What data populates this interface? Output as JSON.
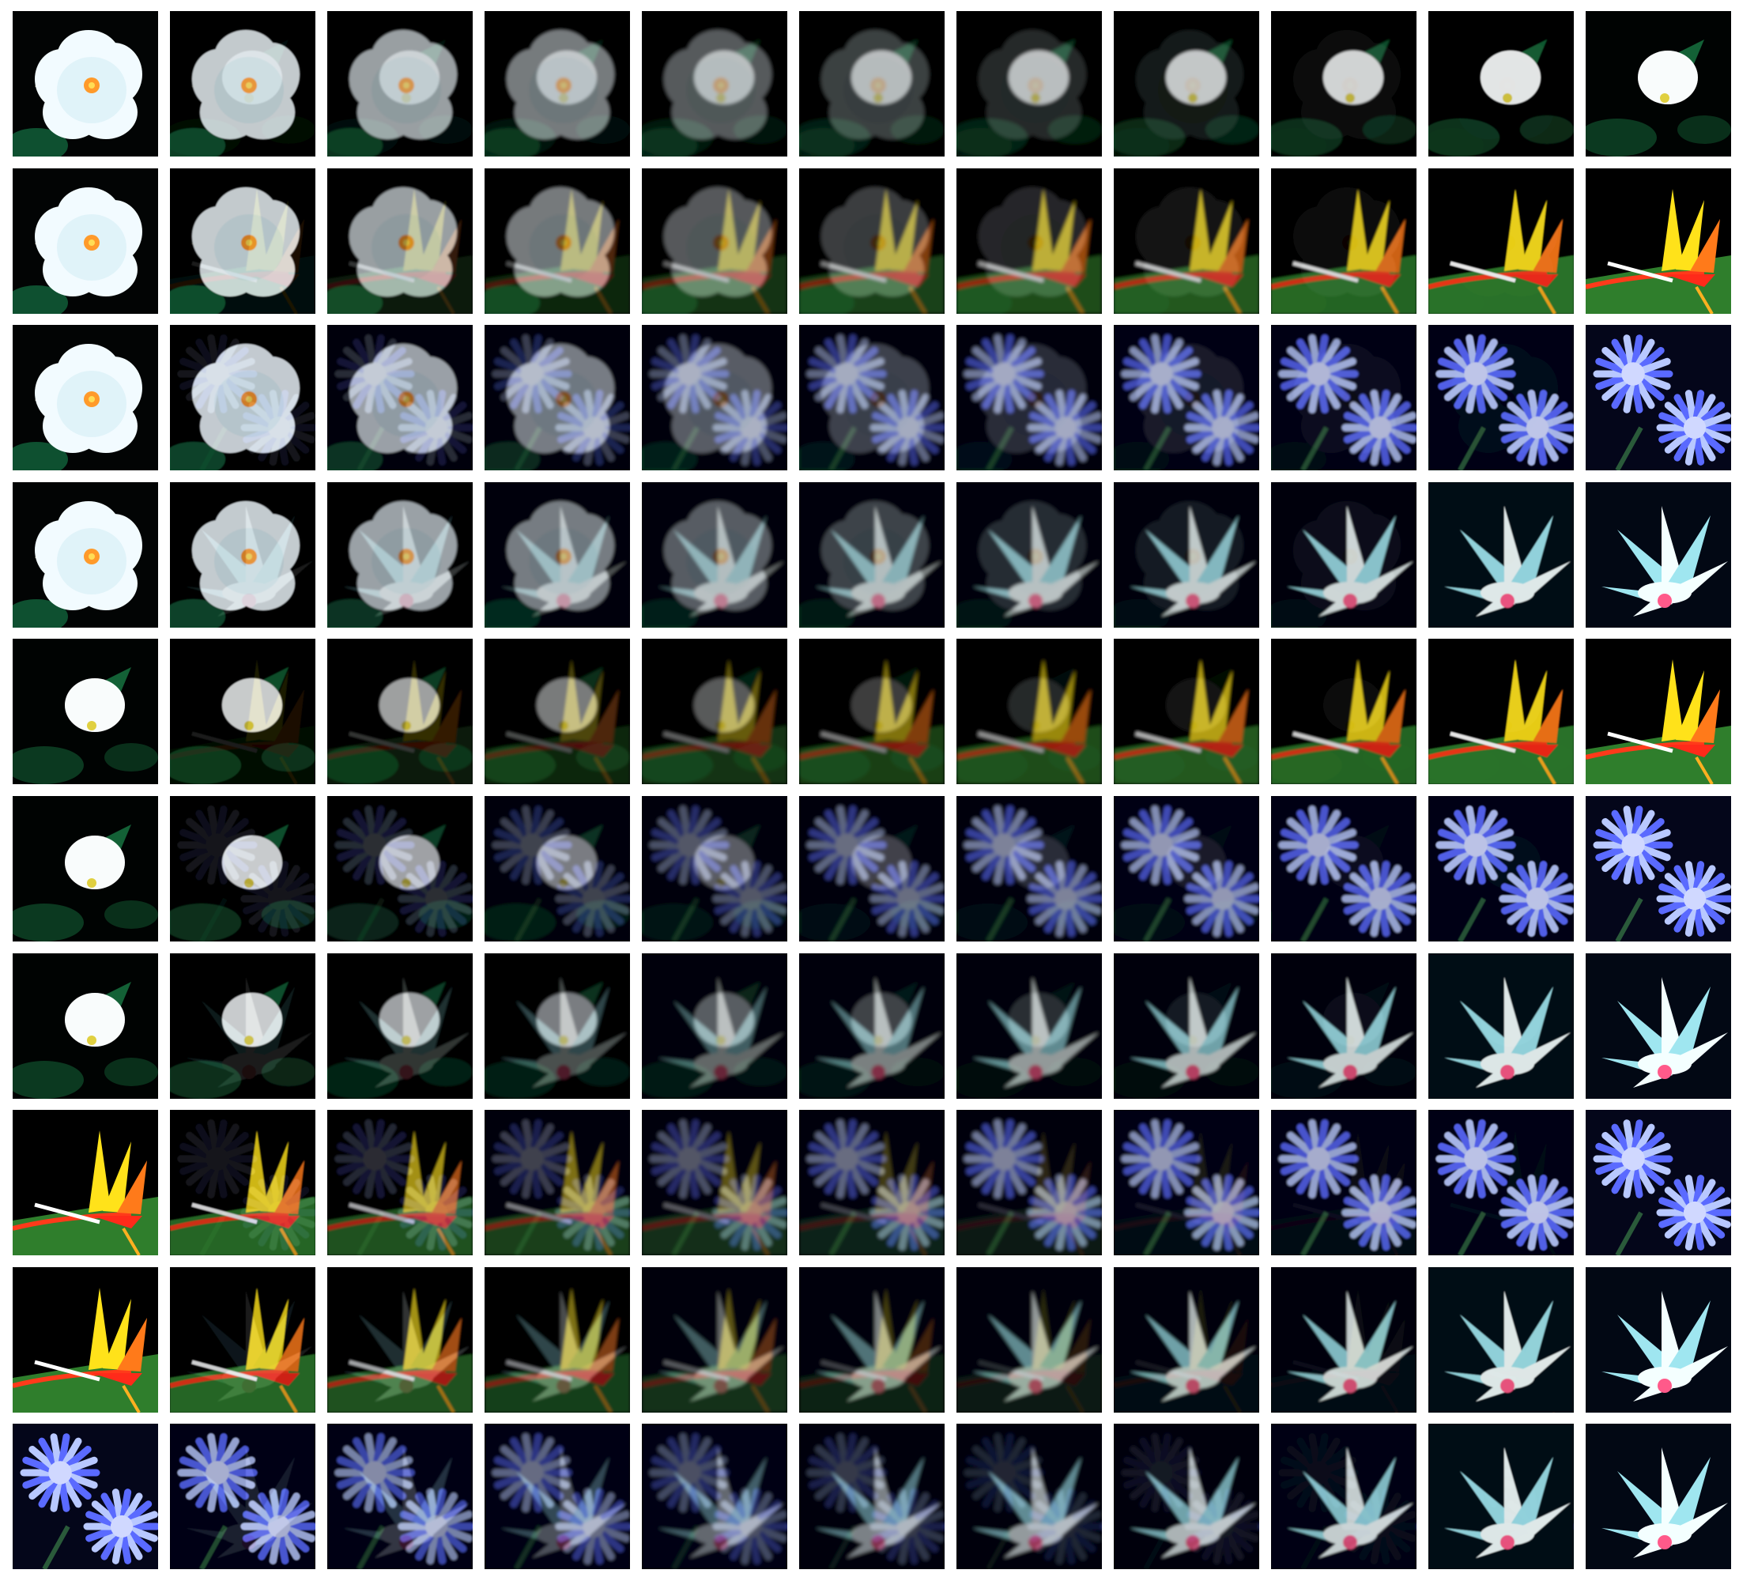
{
  "figure": {
    "rows": 10,
    "cols": 11,
    "background": "#ffffff",
    "tile_background": "#000000",
    "description_of_content": "",
    "anchors": {
      "white_flower": {
        "kind": "round",
        "petal": "#f2fbff",
        "tint": "#bfe6ee",
        "center": "#ff9a2a",
        "leaf": "#1a8f55",
        "bg": "#020404"
      },
      "calla": {
        "kind": "bulb",
        "petal": "#ffffff",
        "tint": "#e8f4f4",
        "center": "#e0d040",
        "leaf": "#1fa05a",
        "bg": "#000302"
      },
      "bird_of_paradise": {
        "kind": "bird",
        "petal": "#ffe21a",
        "tint": "#ff7a1a",
        "center": "#ff2a1a",
        "leaf": "#4fd24a",
        "bg": "#000000"
      },
      "blue_asters": {
        "kind": "asters",
        "petal": "#b8c8ff",
        "tint": "#5a6aff",
        "center": "#d0d8ff",
        "leaf": "#2a5a3a",
        "bg": "#04061a"
      },
      "magnolia": {
        "kind": "lily",
        "petal": "#f4ffff",
        "tint": "#9fe6f0",
        "center": "#ff5a8a",
        "leaf": "#1c3a3a",
        "bg": "#020814"
      }
    },
    "row_pairs": [
      [
        "white_flower",
        "calla"
      ],
      [
        "white_flower",
        "bird_of_paradise"
      ],
      [
        "white_flower",
        "blue_asters"
      ],
      [
        "white_flower",
        "magnolia"
      ],
      [
        "calla",
        "bird_of_paradise"
      ],
      [
        "calla",
        "blue_asters"
      ],
      [
        "calla",
        "magnolia"
      ],
      [
        "bird_of_paradise",
        "blue_asters"
      ],
      [
        "bird_of_paradise",
        "magnolia"
      ],
      [
        "blue_asters",
        "magnolia"
      ]
    ],
    "interpolation_steps": [
      0,
      0.1,
      0.2,
      0.3,
      0.4,
      0.5,
      0.6,
      0.7,
      0.8,
      0.9,
      1.0
    ]
  }
}
